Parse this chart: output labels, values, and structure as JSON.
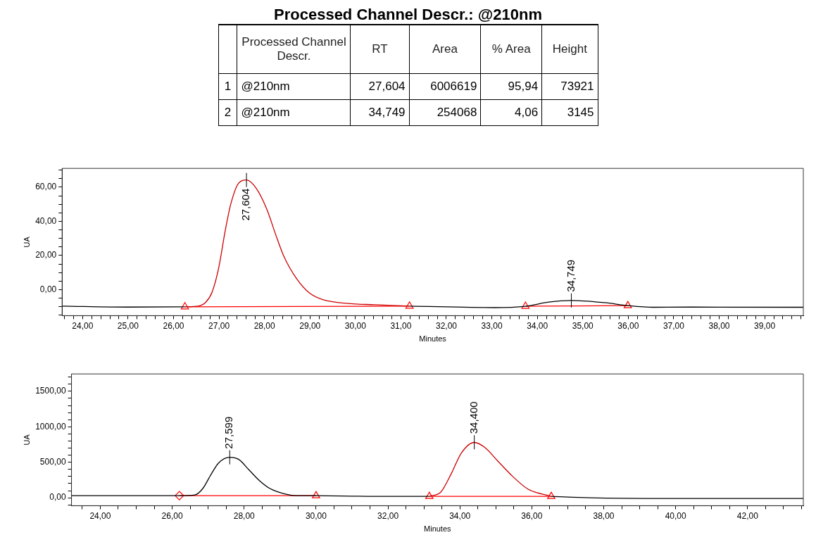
{
  "chart_data": [
    {
      "type": "other",
      "title": "Processed Channel Descr.: @210nm",
      "categories": [
        null,
        "Processed Channel Descr.",
        "RT",
        "Area",
        "% Area",
        "Height"
      ],
      "annotations": [
        "1",
        "@210nm",
        "27,604",
        "6006619",
        "95,94",
        "73921",
        "2",
        "@210nm",
        "34,749",
        "254068",
        "4,06",
        "3145"
      ]
    },
    {
      "type": "line",
      "xlabel": "Minutes",
      "ylabel": "UA",
      "xlim": [
        23.55,
        39.85
      ],
      "ylim": [
        -15.2,
        71
      ],
      "xticks": [
        {
          "value": 23.6,
          "label": null
        },
        {
          "value": 23.8,
          "label": null
        },
        {
          "value": 24,
          "label": "24,00"
        },
        {
          "value": 24.2,
          "label": null
        },
        {
          "value": 24.4,
          "label": null
        },
        {
          "value": 24.6,
          "label": null
        },
        {
          "value": 24.8,
          "label": null
        },
        {
          "value": 25,
          "label": "25,00"
        },
        {
          "value": 25.2,
          "label": null
        },
        {
          "value": 25.4,
          "label": null
        },
        {
          "value": 25.6,
          "label": null
        },
        {
          "value": 25.8,
          "label": null
        },
        {
          "value": 26,
          "label": "26,00"
        },
        {
          "value": 26.2,
          "label": null
        },
        {
          "value": 26.4,
          "label": null
        },
        {
          "value": 26.6,
          "label": null
        },
        {
          "value": 26.8,
          "label": null
        },
        {
          "value": 27,
          "label": "27,00"
        },
        {
          "value": 27.2,
          "label": null
        },
        {
          "value": 27.4,
          "label": null
        },
        {
          "value": 27.6,
          "label": null
        },
        {
          "value": 27.8,
          "label": null
        },
        {
          "value": 28,
          "label": "28,00"
        },
        {
          "value": 28.2,
          "label": null
        },
        {
          "value": 28.4,
          "label": null
        },
        {
          "value": 28.6,
          "label": null
        },
        {
          "value": 28.8,
          "label": null
        },
        {
          "value": 29,
          "label": "29,00"
        },
        {
          "value": 29.2,
          "label": null
        },
        {
          "value": 29.4,
          "label": null
        },
        {
          "value": 29.6,
          "label": null
        },
        {
          "value": 29.8,
          "label": null
        },
        {
          "value": 30,
          "label": "30,00"
        },
        {
          "value": 30.2,
          "label": null
        },
        {
          "value": 30.4,
          "label": null
        },
        {
          "value": 30.6,
          "label": null
        },
        {
          "value": 30.8,
          "label": null
        },
        {
          "value": 31,
          "label": "31,00"
        },
        {
          "value": 31.2,
          "label": null
        },
        {
          "value": 31.4,
          "label": null
        },
        {
          "value": 31.6,
          "label": null
        },
        {
          "value": 31.8,
          "label": null
        },
        {
          "value": 32,
          "label": "32,00"
        },
        {
          "value": 32.2,
          "label": null
        },
        {
          "value": 32.4,
          "label": null
        },
        {
          "value": 32.6,
          "label": null
        },
        {
          "value": 32.8,
          "label": null
        },
        {
          "value": 33,
          "label": "33,00"
        },
        {
          "value": 33.2,
          "label": null
        },
        {
          "value": 33.4,
          "label": null
        },
        {
          "value": 33.6,
          "label": null
        },
        {
          "value": 33.8,
          "label": null
        },
        {
          "value": 34,
          "label": "34,00"
        },
        {
          "value": 34.2,
          "label": null
        },
        {
          "value": 34.4,
          "label": null
        },
        {
          "value": 34.6,
          "label": null
        },
        {
          "value": 34.8,
          "label": null
        },
        {
          "value": 35,
          "label": "35,00"
        },
        {
          "value": 35.2,
          "label": null
        },
        {
          "value": 35.4,
          "label": null
        },
        {
          "value": 35.6,
          "label": null
        },
        {
          "value": 35.8,
          "label": null
        },
        {
          "value": 36,
          "label": "36,00"
        },
        {
          "value": 36.2,
          "label": null
        },
        {
          "value": 36.4,
          "label": null
        },
        {
          "value": 36.6,
          "label": null
        },
        {
          "value": 36.8,
          "label": null
        },
        {
          "value": 37,
          "label": "37,00"
        },
        {
          "value": 37.2,
          "label": null
        },
        {
          "value": 37.4,
          "label": null
        },
        {
          "value": 37.6,
          "label": null
        },
        {
          "value": 37.8,
          "label": null
        },
        {
          "value": 38,
          "label": "38,00"
        },
        {
          "value": 38.2,
          "label": null
        },
        {
          "value": 38.4,
          "label": null
        },
        {
          "value": 38.6,
          "label": null
        },
        {
          "value": 38.8,
          "label": null
        },
        {
          "value": 39,
          "label": "39,00"
        },
        {
          "value": 39.2,
          "label": null
        },
        {
          "value": 39.4,
          "label": null
        },
        {
          "value": 39.6,
          "label": null
        },
        {
          "value": 39.8,
          "label": null
        }
      ],
      "yticks": [
        {
          "value": -15,
          "label": null
        },
        {
          "value": -10,
          "label": null
        },
        {
          "value": -5,
          "label": null
        },
        {
          "value": 0,
          "label": "0,00"
        },
        {
          "value": 5,
          "label": null
        },
        {
          "value": 10,
          "label": null
        },
        {
          "value": 15,
          "label": null
        },
        {
          "value": 20,
          "label": "20,00"
        },
        {
          "value": 25,
          "label": null
        },
        {
          "value": 30,
          "label": null
        },
        {
          "value": 35,
          "label": null
        },
        {
          "value": 40,
          "label": "40,00"
        },
        {
          "value": 45,
          "label": null
        },
        {
          "value": 50,
          "label": null
        },
        {
          "value": 55,
          "label": null
        },
        {
          "value": 60,
          "label": "60,00"
        },
        {
          "value": 65,
          "label": null
        },
        {
          "value": 70,
          "label": null
        }
      ],
      "series": [
        {
          "type": "line",
          "color": "#000000",
          "x": [
            23.55,
            25.0,
            26.25
          ],
          "values": [
            -9.6,
            -10.2,
            -10.0
          ]
        },
        {
          "type": "line",
          "color": "#cc0000",
          "x": [
            26.25,
            26.54,
            26.71,
            26.85,
            26.99,
            27.14,
            27.26,
            27.43,
            27.604,
            27.82,
            28.05,
            28.25,
            28.42,
            28.71,
            28.99,
            29.28,
            29.85,
            30.42,
            31.19
          ],
          "values": [
            -10.0,
            -9.6,
            -7.3,
            -1.3,
            12.3,
            35.0,
            50.2,
            62.3,
            64.2,
            59.3,
            47.2,
            32.0,
            19.9,
            6.3,
            -2.0,
            -5.8,
            -8.1,
            -8.8,
            -9.6
          ]
        },
        {
          "type": "line",
          "color": "#000000",
          "x": [
            31.19,
            33.07,
            33.74,
            34.25,
            34.749,
            35.48,
            35.99,
            36.55,
            37.4,
            39.85
          ],
          "values": [
            -9.6,
            -10.5,
            -9.7,
            -7.3,
            -6.3,
            -7.6,
            -9.3,
            -10.3,
            -10.2,
            -10.3
          ]
        },
        {
          "type": "line",
          "marker": "triangle",
          "color": "#ff0000",
          "x": [
            26.25,
            31.19
          ],
          "values": [
            -10.0,
            -9.6
          ]
        },
        {
          "type": "line",
          "marker": "triangle",
          "color": "#ff0000",
          "x": [
            33.74,
            35.99
          ],
          "values": [
            -9.7,
            -9.3
          ]
        }
      ],
      "annotations": [
        {
          "text": "27,604",
          "x": 27.604,
          "y": 64.2
        },
        {
          "text": "34,749",
          "x": 34.749,
          "y": -6.3
        }
      ]
    },
    {
      "type": "line",
      "xlabel": "Minutes",
      "ylabel": "UA",
      "xlim": [
        23.2,
        43.55
      ],
      "ylim": [
        -112,
        1745
      ],
      "xticks": [
        {
          "value": 23.5,
          "label": null
        },
        {
          "value": 24,
          "label": "24,00"
        },
        {
          "value": 24.5,
          "label": null
        },
        {
          "value": 25,
          "label": null
        },
        {
          "value": 25.5,
          "label": null
        },
        {
          "value": 26,
          "label": "26,00"
        },
        {
          "value": 26.5,
          "label": null
        },
        {
          "value": 27,
          "label": null
        },
        {
          "value": 27.5,
          "label": null
        },
        {
          "value": 28,
          "label": "28,00"
        },
        {
          "value": 28.5,
          "label": null
        },
        {
          "value": 29,
          "label": null
        },
        {
          "value": 29.5,
          "label": null
        },
        {
          "value": 30,
          "label": "30,00"
        },
        {
          "value": 30.5,
          "label": null
        },
        {
          "value": 31,
          "label": null
        },
        {
          "value": 31.5,
          "label": null
        },
        {
          "value": 32,
          "label": "32,00"
        },
        {
          "value": 32.5,
          "label": null
        },
        {
          "value": 33,
          "label": null
        },
        {
          "value": 33.5,
          "label": null
        },
        {
          "value": 34,
          "label": "34,00"
        },
        {
          "value": 34.5,
          "label": null
        },
        {
          "value": 35,
          "label": null
        },
        {
          "value": 35.5,
          "label": null
        },
        {
          "value": 36,
          "label": "36,00"
        },
        {
          "value": 36.5,
          "label": null
        },
        {
          "value": 37,
          "label": null
        },
        {
          "value": 37.5,
          "label": null
        },
        {
          "value": 38,
          "label": "38,00"
        },
        {
          "value": 38.5,
          "label": null
        },
        {
          "value": 39,
          "label": null
        },
        {
          "value": 39.5,
          "label": null
        },
        {
          "value": 40,
          "label": "40,00"
        },
        {
          "value": 40.5,
          "label": null
        },
        {
          "value": 41,
          "label": null
        },
        {
          "value": 41.5,
          "label": null
        },
        {
          "value": 42,
          "label": "42,00"
        },
        {
          "value": 42.5,
          "label": null
        },
        {
          "value": 43,
          "label": null
        },
        {
          "value": 43.5,
          "label": null
        }
      ],
      "yticks": [
        {
          "value": -100,
          "label": null
        },
        {
          "value": 0,
          "label": "0,00"
        },
        {
          "value": 100,
          "label": null
        },
        {
          "value": 200,
          "label": null
        },
        {
          "value": 300,
          "label": null
        },
        {
          "value": 400,
          "label": null
        },
        {
          "value": 500,
          "label": "500,00"
        },
        {
          "value": 600,
          "label": null
        },
        {
          "value": 700,
          "label": null
        },
        {
          "value": 800,
          "label": null
        },
        {
          "value": 900,
          "label": null
        },
        {
          "value": 1000,
          "label": "1000,00"
        },
        {
          "value": 1100,
          "label": null
        },
        {
          "value": 1200,
          "label": null
        },
        {
          "value": 1300,
          "label": null
        },
        {
          "value": 1400,
          "label": null
        },
        {
          "value": 1500,
          "label": "1500,00"
        },
        {
          "value": 1600,
          "label": null
        },
        {
          "value": 1700,
          "label": null
        }
      ],
      "series": [
        {
          "type": "line",
          "color": "#000000",
          "x": [
            23.2,
            26.2,
            26.63,
            26.85,
            27.07,
            27.29,
            27.599,
            27.85,
            28.14,
            28.43,
            28.72,
            29.09,
            29.45,
            30.0,
            31.5,
            33.15
          ],
          "values": [
            30,
            30,
            40,
            130,
            320,
            490,
            570,
            540,
            390,
            240,
            130,
            60,
            30,
            30,
            20,
            20
          ]
        },
        {
          "type": "line",
          "color": "#cc0000",
          "x": [
            33.15,
            33.47,
            33.76,
            34.04,
            34.4,
            34.69,
            35.05,
            35.47,
            35.9,
            36.54
          ],
          "values": [
            20,
            80,
            340,
            630,
            780,
            710,
            520,
            300,
            120,
            20
          ]
        },
        {
          "type": "line",
          "color": "#000000",
          "x": [
            36.54,
            37.61,
            39.76,
            43.55
          ],
          "values": [
            20,
            0,
            -10,
            -10
          ]
        },
        {
          "type": "line",
          "marker": [
            "diamond",
            "triangle"
          ],
          "color": "#ff0000",
          "x": [
            26.2,
            30.0
          ],
          "values": [
            30,
            30
          ]
        },
        {
          "type": "line",
          "marker": "triangle",
          "color": "#ff0000",
          "x": [
            33.15,
            36.54
          ],
          "values": [
            20,
            20
          ]
        }
      ],
      "annotations": [
        {
          "text": "27,599",
          "x": 27.599,
          "y": 570
        },
        {
          "text": "34,400",
          "x": 34.4,
          "y": 782
        }
      ]
    }
  ]
}
